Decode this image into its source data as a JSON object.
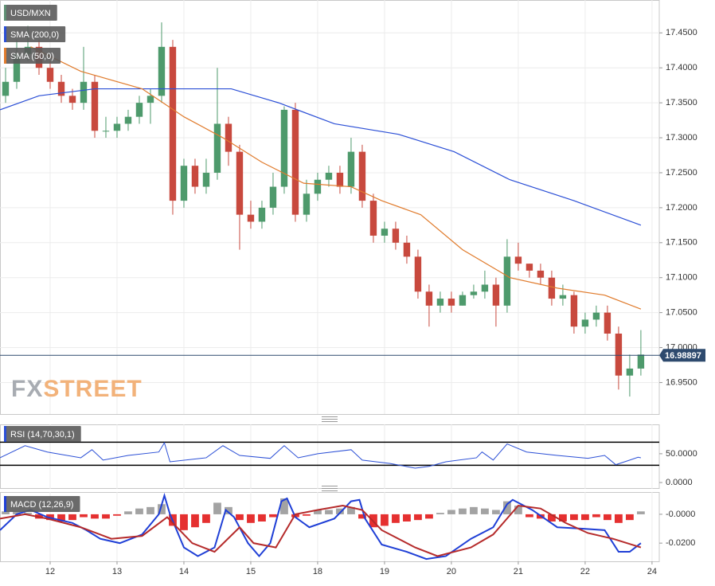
{
  "chart_data": [
    {
      "type": "candlestick",
      "title": "USD/MXN",
      "x": [
        8,
        12,
        16,
        20,
        24,
        28,
        32,
        36,
        40,
        44,
        48,
        52,
        56,
        60,
        64,
        68,
        72,
        76,
        80,
        84,
        88,
        92,
        96,
        100,
        104,
        108,
        112,
        116,
        120,
        124,
        128,
        132,
        136,
        140,
        144,
        148,
        152,
        156,
        160,
        164,
        168,
        172,
        176,
        180,
        184,
        188,
        192,
        196,
        200,
        204,
        208,
        212,
        216,
        220,
        224,
        228,
        232,
        236
      ],
      "open": [
        17.36,
        17.38,
        17.42,
        17.43,
        17.4,
        17.38,
        17.36,
        17.35,
        17.38,
        17.31,
        17.31,
        17.32,
        17.33,
        17.35,
        17.36,
        17.43,
        17.21,
        17.26,
        17.23,
        17.25,
        17.32,
        17.28,
        17.19,
        17.18,
        17.2,
        17.23,
        17.34,
        17.19,
        17.22,
        17.24,
        17.25,
        17.23,
        17.28,
        17.21,
        17.16,
        17.17,
        17.15,
        17.13,
        17.08,
        17.06,
        17.07,
        17.06,
        17.075,
        17.08,
        17.09,
        17.06,
        17.13,
        17.12,
        17.11,
        17.1,
        17.07,
        17.075,
        17.03,
        17.04,
        17.05,
        17.02,
        16.96,
        16.97
      ],
      "high": [
        17.4,
        17.44,
        17.46,
        17.44,
        17.41,
        17.39,
        17.37,
        17.43,
        17.39,
        17.33,
        17.33,
        17.34,
        17.36,
        17.37,
        17.465,
        17.44,
        17.27,
        17.27,
        17.27,
        17.4,
        17.33,
        17.29,
        17.21,
        17.21,
        17.25,
        17.345,
        17.35,
        17.24,
        17.25,
        17.26,
        17.26,
        17.3,
        17.29,
        17.22,
        17.18,
        17.18,
        17.16,
        17.14,
        17.09,
        17.08,
        17.08,
        17.08,
        17.09,
        17.11,
        17.1,
        17.155,
        17.15,
        17.12,
        17.12,
        17.11,
        17.09,
        17.08,
        17.05,
        17.06,
        17.06,
        17.03,
        16.99,
        17.025
      ],
      "low": [
        17.35,
        17.37,
        17.41,
        17.39,
        17.37,
        17.35,
        17.34,
        17.34,
        17.3,
        17.3,
        17.3,
        17.31,
        17.32,
        17.32,
        17.35,
        17.19,
        17.2,
        17.22,
        17.22,
        17.24,
        17.26,
        17.14,
        17.17,
        17.17,
        17.19,
        17.22,
        17.18,
        17.18,
        17.21,
        17.23,
        17.22,
        17.22,
        17.2,
        17.15,
        17.15,
        17.14,
        17.12,
        17.07,
        17.03,
        17.05,
        17.05,
        17.06,
        17.07,
        17.07,
        17.03,
        17.05,
        17.11,
        17.1,
        17.09,
        17.06,
        17.06,
        17.02,
        17.02,
        17.03,
        17.01,
        16.94,
        16.93,
        16.96
      ],
      "close": [
        17.38,
        17.42,
        17.43,
        17.4,
        17.38,
        17.36,
        17.35,
        17.38,
        17.31,
        17.31,
        17.32,
        17.33,
        17.35,
        17.36,
        17.43,
        17.21,
        17.26,
        17.23,
        17.25,
        17.32,
        17.28,
        17.19,
        17.18,
        17.2,
        17.23,
        17.34,
        17.19,
        17.22,
        17.24,
        17.25,
        17.23,
        17.28,
        17.21,
        17.16,
        17.17,
        17.15,
        17.13,
        17.08,
        17.06,
        17.07,
        17.06,
        17.075,
        17.08,
        17.09,
        17.06,
        17.13,
        17.12,
        17.11,
        17.1,
        17.07,
        17.075,
        17.03,
        17.04,
        17.05,
        17.02,
        16.96,
        16.97,
        16.99
      ],
      "up_color": "#4e9a6c",
      "down_color": "#c8493e",
      "title_color": "#5f8f73",
      "series": [
        {
          "name": "SMA (200,0)",
          "color": "#2b4fd6",
          "x": [
            6,
            20,
            40,
            63,
            89,
            106,
            126,
            149,
            169,
            189,
            212,
            236
          ],
          "values": [
            17.34,
            17.36,
            17.37,
            17.37,
            17.37,
            17.35,
            17.32,
            17.305,
            17.28,
            17.24,
            17.21,
            17.175
          ]
        },
        {
          "name": "SMA (50,0)",
          "color": "#e07b2c",
          "x": [
            17,
            35,
            57,
            72,
            86,
            100,
            115,
            132,
            143,
            157,
            172,
            189,
            206,
            223,
            236
          ],
          "values": [
            17.43,
            17.395,
            17.37,
            17.33,
            17.3,
            17.265,
            17.235,
            17.23,
            17.21,
            17.19,
            17.14,
            17.1,
            17.085,
            17.075,
            17.055
          ]
        }
      ],
      "last_value": 16.98897,
      "last_color": "#2e4a6e",
      "watermark": {
        "left": "FX",
        "right": "STREET"
      },
      "xlim": [
        6,
        242.6
      ],
      "xticks": [
        {
          "value": 24,
          "label": "12"
        },
        {
          "value": 48,
          "label": "13"
        },
        {
          "value": 72,
          "label": "14"
        },
        {
          "value": 96,
          "label": "15"
        },
        {
          "value": 120,
          "label": "18"
        },
        {
          "value": 144,
          "label": "19"
        },
        {
          "value": 168,
          "label": "20"
        },
        {
          "value": 192,
          "label": "21"
        },
        {
          "value": 216,
          "label": "22"
        },
        {
          "value": 240,
          "label": "24"
        }
      ],
      "ylim": [
        16.905,
        17.497
      ],
      "yticks": [
        {
          "value": 17.45,
          "label": "17.4500"
        },
        {
          "value": 17.4,
          "label": "17.4000"
        },
        {
          "value": 17.35,
          "label": "17.3500"
        },
        {
          "value": 17.3,
          "label": "17.3000"
        },
        {
          "value": 17.25,
          "label": "17.2500"
        },
        {
          "value": 17.2,
          "label": "17.2000"
        },
        {
          "value": 17.15,
          "label": "17.1500"
        },
        {
          "value": 17.1,
          "label": "17.1000"
        },
        {
          "value": 17.05,
          "label": "17.0500"
        },
        {
          "value": 17.0,
          "label": "17.0000"
        },
        {
          "value": 16.95,
          "label": "16.9500"
        }
      ],
      "grid": true
    },
    {
      "type": "line",
      "title": "RSI (14,70,30,1)",
      "color": "#2b4fd6",
      "x": [
        6,
        15,
        23,
        35,
        39,
        43,
        52,
        63,
        65,
        67,
        80,
        86,
        92,
        103,
        108,
        113,
        120,
        132,
        136,
        146,
        155,
        160,
        166,
        177,
        179,
        183,
        188,
        195,
        206,
        217,
        223,
        227,
        232,
        235,
        236
      ],
      "values": [
        43,
        64,
        53,
        43,
        57,
        39,
        47,
        53,
        69,
        36,
        43,
        64,
        47,
        42,
        64,
        43,
        50,
        57,
        39,
        33,
        25,
        28,
        36,
        43,
        53,
        39,
        67,
        53,
        47,
        42,
        47,
        31,
        39,
        44,
        43
      ],
      "levels": [
        70,
        30
      ],
      "ylim": [
        -11,
        101
      ],
      "yticks": [
        {
          "value": 0,
          "label": "0.0000"
        },
        {
          "value": 50,
          "label": "50.0000"
        }
      ]
    },
    {
      "type": "macd",
      "title": "MACD (12,26,9)",
      "series": [
        {
          "color": "#1f3fd6",
          "x": [
            6,
            12,
            17,
            23,
            32,
            37,
            42,
            49,
            57,
            63,
            65,
            67,
            72,
            77,
            83,
            87,
            90,
            95,
            99,
            103,
            107,
            109,
            112,
            117,
            126,
            132,
            135,
            137,
            143,
            152,
            159,
            166,
            175,
            183,
            188,
            190,
            197,
            206,
            215,
            223,
            228,
            232,
            236
          ],
          "values": [
            -0.011,
            0,
            0.003,
            -0.002,
            -0.006,
            -0.011,
            -0.017,
            -0.02,
            -0.014,
            0,
            0.013,
            0,
            -0.023,
            -0.029,
            -0.023,
            0.003,
            -0.002,
            -0.02,
            -0.029,
            -0.02,
            0.009,
            0.011,
            -0.002,
            -0.009,
            -0.003,
            0.009,
            0.01,
            -0.003,
            -0.021,
            -0.026,
            -0.031,
            -0.029,
            -0.017,
            -0.009,
            0.007,
            0.01,
            0.003,
            -0.009,
            -0.01,
            -0.011,
            -0.026,
            -0.026,
            -0.02
          ]
        },
        {
          "color": "#b52a2a",
          "x": [
            6,
            15,
            23,
            35,
            46,
            57,
            66,
            75,
            83,
            92,
            97,
            105,
            112,
            120,
            129,
            136,
            143,
            155,
            163,
            175,
            183,
            192,
            200,
            209,
            217,
            226,
            236
          ],
          "values": [
            -0.003,
            0,
            -0.003,
            -0.009,
            -0.017,
            -0.015,
            -0.002,
            -0.02,
            -0.026,
            -0.009,
            -0.02,
            -0.023,
            0,
            0.003,
            0.006,
            0.003,
            -0.011,
            -0.023,
            -0.029,
            -0.023,
            -0.014,
            0.006,
            0.004,
            -0.006,
            -0.013,
            -0.017,
            -0.023
          ]
        }
      ],
      "histogram": {
        "up_color": "#a3a3a3",
        "down_color": "#e53030",
        "x": [
          8,
          12,
          16,
          20,
          24,
          28,
          32,
          36,
          40,
          44,
          48,
          52,
          56,
          60,
          64,
          68,
          72,
          76,
          80,
          84,
          88,
          92,
          96,
          100,
          104,
          108,
          112,
          116,
          120,
          124,
          128,
          132,
          136,
          140,
          144,
          148,
          152,
          156,
          160,
          164,
          168,
          172,
          176,
          180,
          184,
          188,
          192,
          196,
          200,
          204,
          208,
          212,
          216,
          220,
          224,
          228,
          232,
          236
        ],
        "values": [
          0.002,
          0.002,
          0.001,
          -0.003,
          -0.004,
          -0.005,
          -0.004,
          -0.002,
          -0.003,
          -0.003,
          -0.001,
          0.002,
          0.004,
          0.005,
          0.007,
          -0.008,
          -0.011,
          -0.009,
          -0.006,
          0.008,
          0.005,
          -0.004,
          -0.006,
          -0.005,
          -0.002,
          0.011,
          -0.002,
          -0.001,
          0.003,
          0.003,
          0.004,
          0.005,
          -0.003,
          -0.009,
          -0.008,
          -0.006,
          -0.005,
          -0.004,
          -0.003,
          0.001,
          0.003,
          0.004,
          0.005,
          0.004,
          0.003,
          0.009,
          0.006,
          -0.002,
          -0.003,
          -0.005,
          -0.005,
          -0.004,
          -0.004,
          -0.002,
          -0.004,
          -0.006,
          -0.004,
          0.002
        ]
      },
      "ylim": [
        -0.0326,
        0.0154
      ],
      "yticks": [
        {
          "value": 0,
          "label": "-0.0000"
        },
        {
          "value": -0.02,
          "label": "-0.0200"
        }
      ]
    }
  ]
}
